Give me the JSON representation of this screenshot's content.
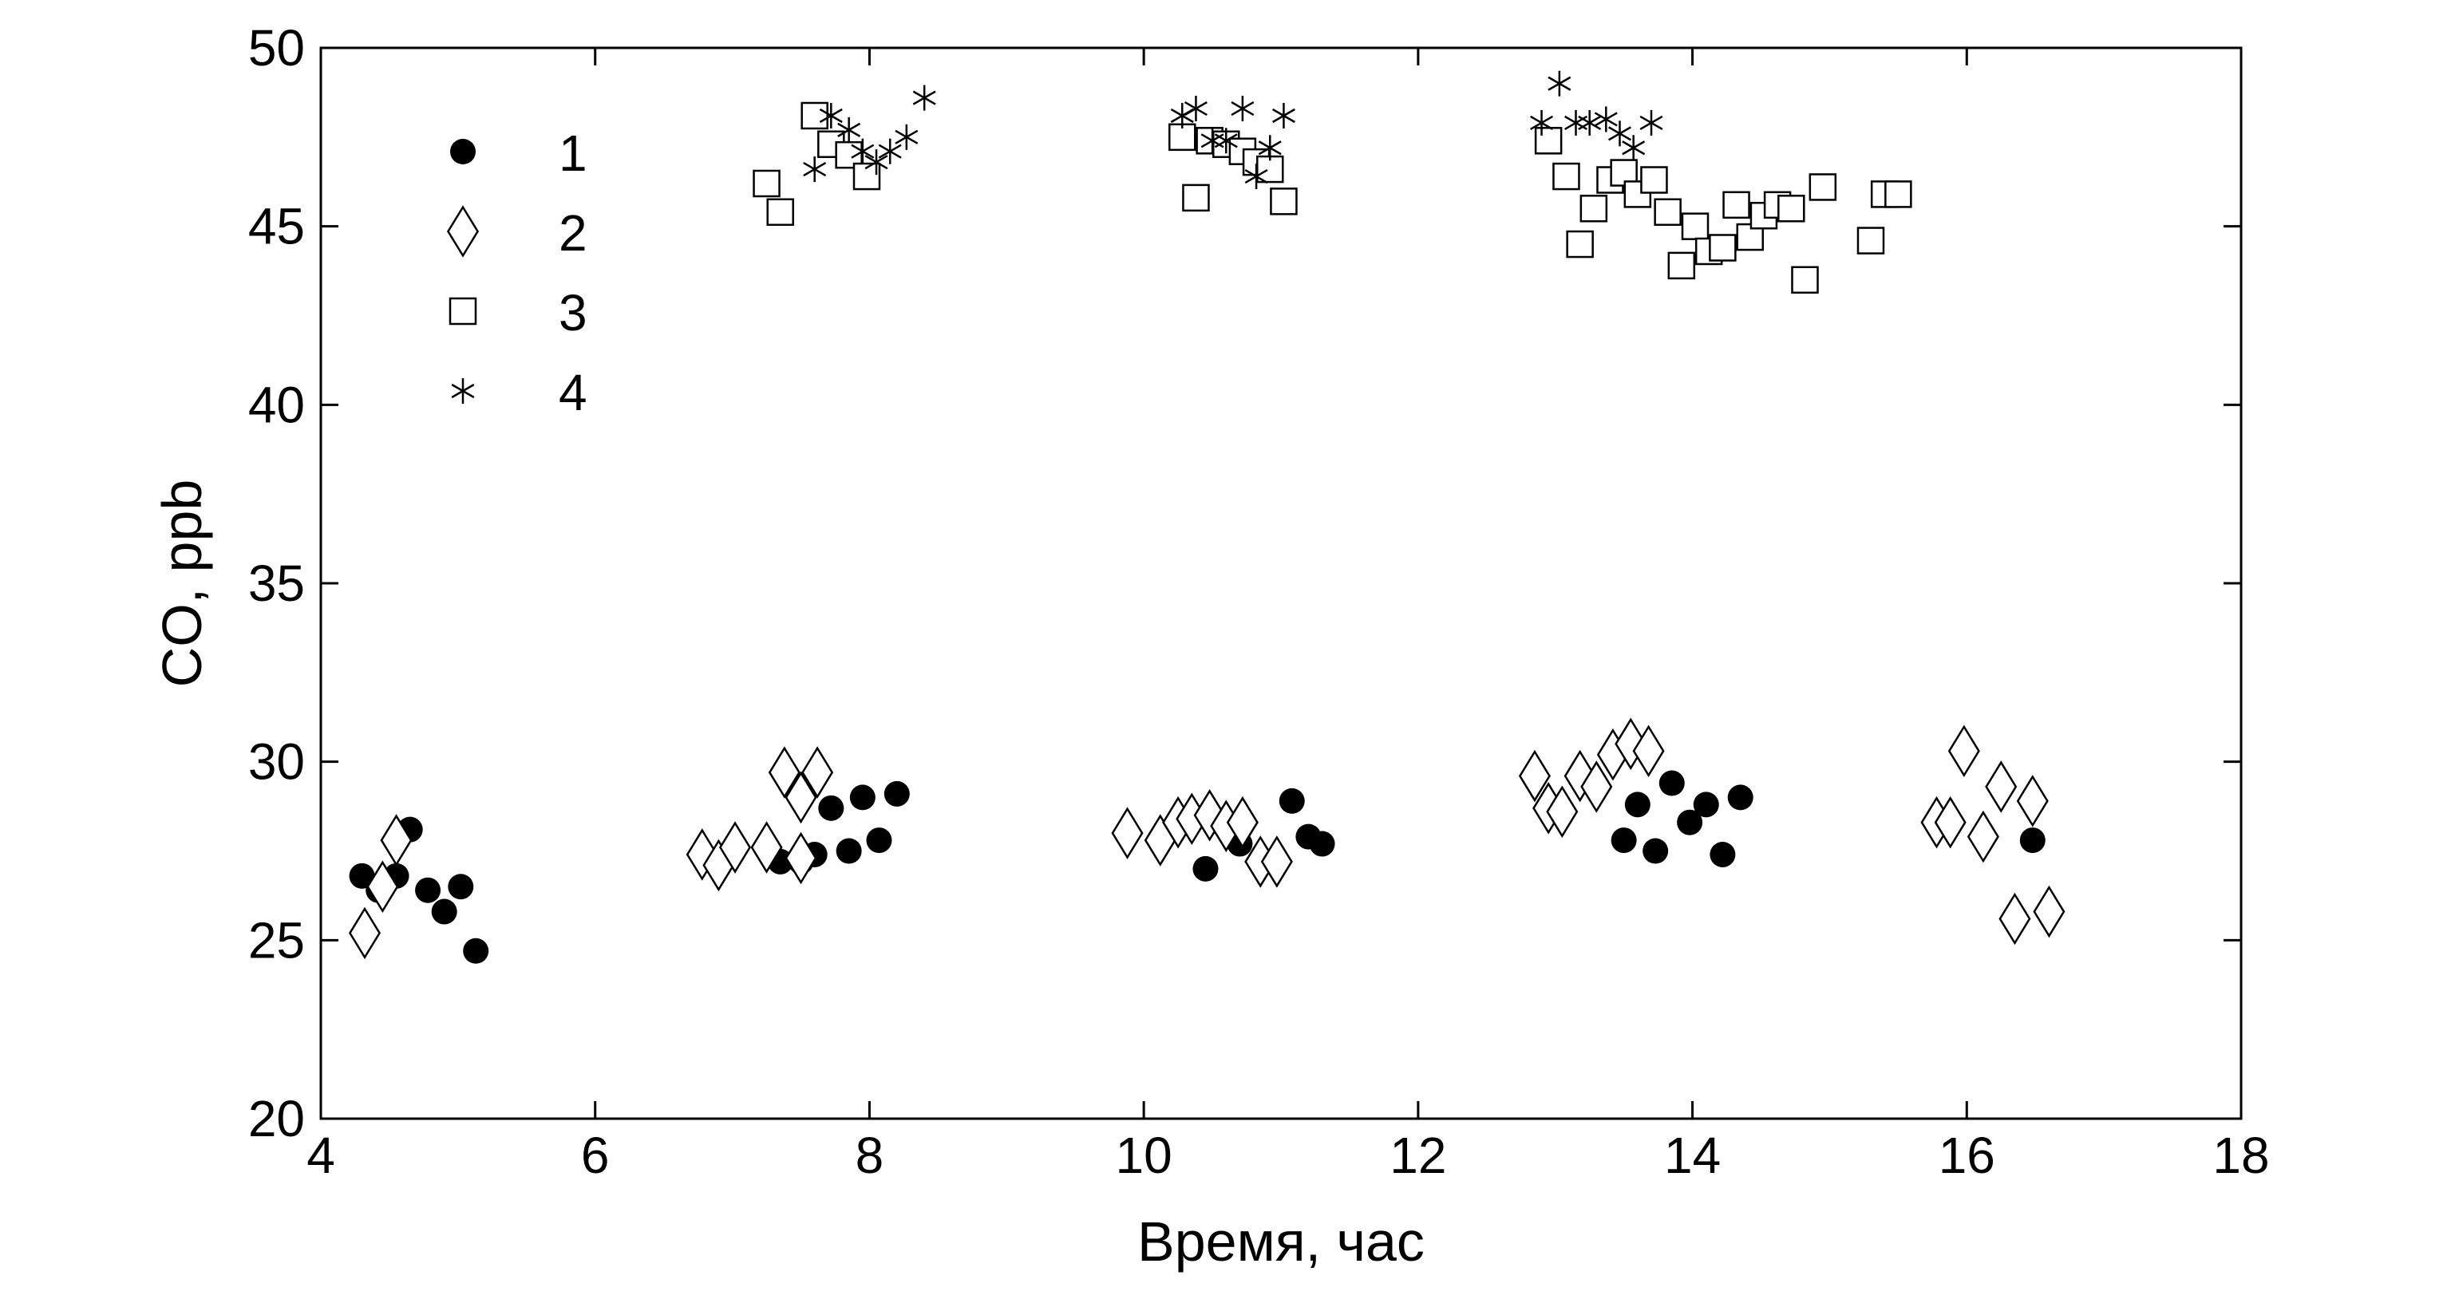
{
  "chart_data": {
    "type": "scatter",
    "xlabel": "Время, час",
    "ylabel": "CO, ppb",
    "xlim": [
      4,
      18
    ],
    "ylim": [
      20,
      50
    ],
    "xticks": [
      4,
      6,
      8,
      10,
      12,
      14,
      16,
      18
    ],
    "yticks": [
      20,
      25,
      30,
      35,
      40,
      45,
      50
    ],
    "grid": false,
    "legend_position": "top-left",
    "series": [
      {
        "name": "1",
        "marker": "filled-circle",
        "points": [
          [
            4.3,
            26.8
          ],
          [
            4.42,
            26.4
          ],
          [
            4.55,
            26.8
          ],
          [
            4.65,
            28.1
          ],
          [
            4.78,
            26.4
          ],
          [
            4.9,
            25.8
          ],
          [
            5.02,
            26.5
          ],
          [
            5.13,
            24.7
          ],
          [
            7.35,
            27.2
          ],
          [
            7.5,
            27.2
          ],
          [
            7.6,
            27.4
          ],
          [
            7.72,
            28.7
          ],
          [
            7.85,
            27.5
          ],
          [
            7.95,
            29.0
          ],
          [
            8.07,
            27.8
          ],
          [
            8.2,
            29.1
          ],
          [
            10.45,
            27.0
          ],
          [
            10.7,
            27.7
          ],
          [
            10.85,
            27.2
          ],
          [
            10.95,
            27.2
          ],
          [
            11.08,
            28.9
          ],
          [
            11.2,
            27.9
          ],
          [
            11.3,
            27.7
          ],
          [
            13.5,
            27.8
          ],
          [
            13.6,
            28.8
          ],
          [
            13.73,
            27.5
          ],
          [
            13.85,
            29.4
          ],
          [
            13.98,
            28.3
          ],
          [
            14.1,
            28.8
          ],
          [
            14.22,
            27.4
          ],
          [
            14.35,
            29.0
          ],
          [
            16.48,
            27.8
          ]
        ]
      },
      {
        "name": "2",
        "marker": "open-diamond",
        "points": [
          [
            4.32,
            25.2
          ],
          [
            4.45,
            26.5
          ],
          [
            4.55,
            27.8
          ],
          [
            6.78,
            27.4
          ],
          [
            6.9,
            27.1
          ],
          [
            7.02,
            27.6
          ],
          [
            7.25,
            27.6
          ],
          [
            7.38,
            29.7
          ],
          [
            7.5,
            29.0
          ],
          [
            7.5,
            27.3
          ],
          [
            7.62,
            29.7
          ],
          [
            9.88,
            28.0
          ],
          [
            10.12,
            27.8
          ],
          [
            10.25,
            28.3
          ],
          [
            10.35,
            28.4
          ],
          [
            10.48,
            28.5
          ],
          [
            10.6,
            28.2
          ],
          [
            10.72,
            28.3
          ],
          [
            10.85,
            27.2
          ],
          [
            10.97,
            27.2
          ],
          [
            12.85,
            29.6
          ],
          [
            12.95,
            28.7
          ],
          [
            13.05,
            28.6
          ],
          [
            13.18,
            29.6
          ],
          [
            13.3,
            29.3
          ],
          [
            13.42,
            30.2
          ],
          [
            13.55,
            30.5
          ],
          [
            13.68,
            30.3
          ],
          [
            15.78,
            28.3
          ],
          [
            15.88,
            28.3
          ],
          [
            15.98,
            30.3
          ],
          [
            16.12,
            27.9
          ],
          [
            16.25,
            29.3
          ],
          [
            16.35,
            25.6
          ],
          [
            16.48,
            28.9
          ],
          [
            16.6,
            25.8
          ]
        ]
      },
      {
        "name": "3",
        "marker": "open-square",
        "points": [
          [
            7.25,
            46.2
          ],
          [
            7.35,
            45.4
          ],
          [
            7.6,
            48.1
          ],
          [
            7.72,
            47.3
          ],
          [
            7.85,
            47.0
          ],
          [
            7.98,
            46.4
          ],
          [
            10.28,
            47.5
          ],
          [
            10.38,
            45.8
          ],
          [
            10.48,
            47.4
          ],
          [
            10.6,
            47.3
          ],
          [
            10.72,
            47.1
          ],
          [
            10.82,
            46.8
          ],
          [
            10.92,
            46.6
          ],
          [
            11.02,
            45.7
          ],
          [
            12.95,
            47.4
          ],
          [
            13.08,
            46.4
          ],
          [
            13.18,
            44.5
          ],
          [
            13.28,
            45.5
          ],
          [
            13.4,
            46.3
          ],
          [
            13.5,
            46.5
          ],
          [
            13.6,
            45.9
          ],
          [
            13.72,
            46.3
          ],
          [
            13.82,
            45.4
          ],
          [
            13.92,
            43.9
          ],
          [
            14.02,
            45.0
          ],
          [
            14.12,
            44.3
          ],
          [
            14.22,
            44.4
          ],
          [
            14.32,
            45.6
          ],
          [
            14.42,
            44.7
          ],
          [
            14.52,
            45.3
          ],
          [
            14.62,
            45.6
          ],
          [
            14.72,
            45.5
          ],
          [
            14.82,
            43.5
          ],
          [
            14.95,
            46.1
          ],
          [
            15.3,
            44.6
          ],
          [
            15.4,
            45.9
          ],
          [
            15.5,
            45.9
          ]
        ]
      },
      {
        "name": "4",
        "marker": "asterisk",
        "points": [
          [
            7.6,
            46.6
          ],
          [
            7.72,
            48.1
          ],
          [
            7.85,
            47.7
          ],
          [
            7.95,
            47.1
          ],
          [
            8.05,
            46.8
          ],
          [
            8.15,
            47.1
          ],
          [
            8.27,
            47.5
          ],
          [
            8.4,
            48.6
          ],
          [
            10.28,
            48.1
          ],
          [
            10.38,
            48.3
          ],
          [
            10.5,
            47.4
          ],
          [
            10.6,
            47.4
          ],
          [
            10.72,
            48.3
          ],
          [
            10.82,
            46.4
          ],
          [
            10.92,
            47.2
          ],
          [
            11.02,
            48.1
          ],
          [
            12.9,
            47.9
          ],
          [
            13.03,
            49.0
          ],
          [
            13.15,
            47.9
          ],
          [
            13.25,
            47.9
          ],
          [
            13.37,
            48.0
          ],
          [
            13.47,
            47.6
          ],
          [
            13.57,
            47.2
          ],
          [
            13.7,
            47.9
          ]
        ]
      }
    ]
  }
}
